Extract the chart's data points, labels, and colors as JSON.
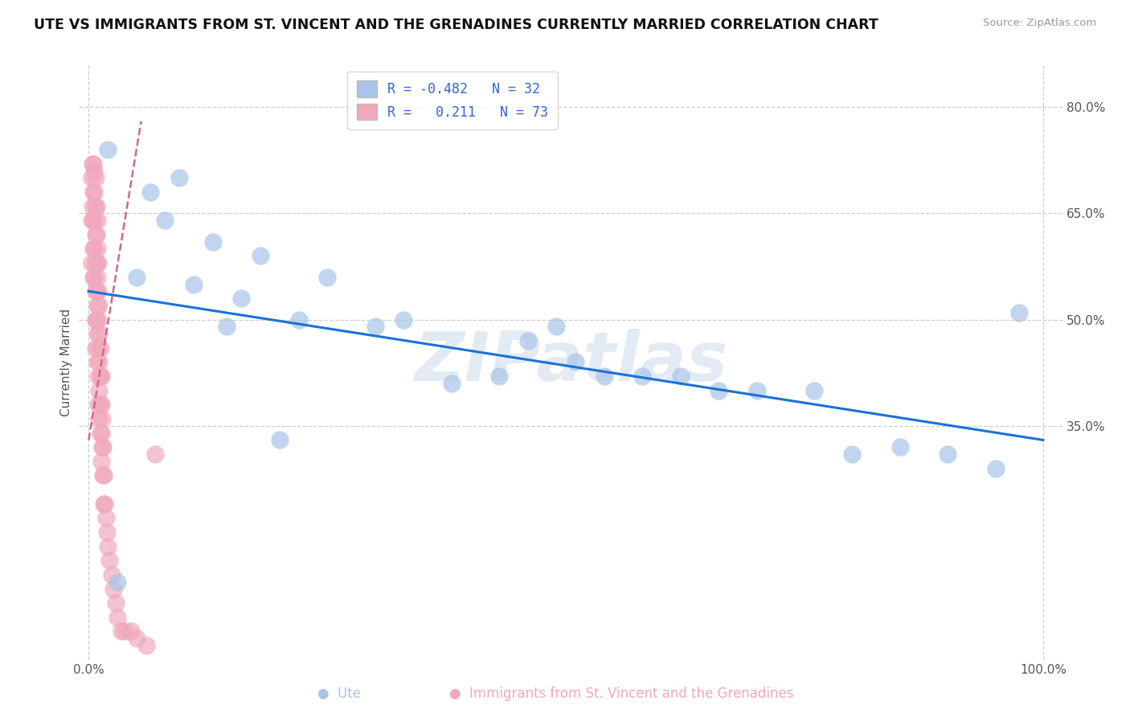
{
  "title": "UTE VS IMMIGRANTS FROM ST. VINCENT AND THE GRENADINES CURRENTLY MARRIED CORRELATION CHART",
  "source": "Source: ZipAtlas.com",
  "ylabel": "Currently Married",
  "xlim": [
    -0.01,
    1.02
  ],
  "ylim": [
    0.02,
    0.86
  ],
  "xtick_positions": [
    0.0,
    1.0
  ],
  "xtick_labels": [
    "0.0%",
    "100.0%"
  ],
  "ytick_values": [
    0.35,
    0.5,
    0.65,
    0.8
  ],
  "ytick_labels": [
    "35.0%",
    "50.0%",
    "65.0%",
    "80.0%"
  ],
  "background_color": "#ffffff",
  "grid_color": "#cccccc",
  "watermark": "ZIPatlas",
  "blue_fill": "#a8c4e8",
  "pink_fill": "#f0a8bc",
  "blue_line": "#1a72d4",
  "pink_line": "#d06888",
  "legend_text_color": "#3366cc",
  "ute_x": [
    0.02,
    0.03,
    0.05,
    0.065,
    0.08,
    0.095,
    0.11,
    0.13,
    0.145,
    0.16,
    0.18,
    0.2,
    0.22,
    0.25,
    0.3,
    0.33,
    0.38,
    0.43,
    0.46,
    0.49,
    0.51,
    0.54,
    0.58,
    0.62,
    0.66,
    0.7,
    0.76,
    0.8,
    0.85,
    0.9,
    0.95,
    0.975
  ],
  "ute_y": [
    0.74,
    0.13,
    0.56,
    0.68,
    0.64,
    0.7,
    0.55,
    0.61,
    0.49,
    0.53,
    0.59,
    0.33,
    0.5,
    0.56,
    0.49,
    0.5,
    0.41,
    0.42,
    0.47,
    0.49,
    0.44,
    0.42,
    0.42,
    0.42,
    0.4,
    0.4,
    0.4,
    0.31,
    0.32,
    0.31,
    0.29,
    0.51
  ],
  "svg_x": [
    0.003,
    0.003,
    0.003,
    0.004,
    0.004,
    0.005,
    0.005,
    0.005,
    0.005,
    0.005,
    0.006,
    0.006,
    0.006,
    0.006,
    0.006,
    0.007,
    0.007,
    0.007,
    0.007,
    0.007,
    0.007,
    0.007,
    0.008,
    0.008,
    0.008,
    0.008,
    0.008,
    0.009,
    0.009,
    0.009,
    0.009,
    0.009,
    0.009,
    0.01,
    0.01,
    0.01,
    0.01,
    0.01,
    0.01,
    0.011,
    0.011,
    0.011,
    0.011,
    0.011,
    0.012,
    0.012,
    0.012,
    0.012,
    0.013,
    0.013,
    0.013,
    0.013,
    0.014,
    0.014,
    0.015,
    0.015,
    0.016,
    0.016,
    0.017,
    0.018,
    0.019,
    0.02,
    0.022,
    0.024,
    0.026,
    0.028,
    0.03,
    0.034,
    0.038,
    0.044,
    0.05,
    0.06,
    0.07
  ],
  "svg_y": [
    0.7,
    0.64,
    0.58,
    0.72,
    0.66,
    0.72,
    0.68,
    0.64,
    0.6,
    0.56,
    0.71,
    0.68,
    0.64,
    0.6,
    0.56,
    0.7,
    0.66,
    0.62,
    0.58,
    0.54,
    0.5,
    0.46,
    0.66,
    0.62,
    0.58,
    0.54,
    0.5,
    0.64,
    0.6,
    0.56,
    0.52,
    0.48,
    0.44,
    0.58,
    0.54,
    0.5,
    0.46,
    0.42,
    0.38,
    0.52,
    0.48,
    0.44,
    0.4,
    0.36,
    0.46,
    0.42,
    0.38,
    0.34,
    0.42,
    0.38,
    0.34,
    0.3,
    0.36,
    0.32,
    0.32,
    0.28,
    0.28,
    0.24,
    0.24,
    0.22,
    0.2,
    0.18,
    0.16,
    0.14,
    0.12,
    0.1,
    0.08,
    0.06,
    0.06,
    0.06,
    0.05,
    0.04,
    0.31
  ],
  "blue_line_x": [
    0.0,
    1.0
  ],
  "blue_line_y": [
    0.54,
    0.33
  ],
  "pink_line_x": [
    0.0,
    0.055
  ],
  "pink_line_y": [
    0.33,
    0.78
  ]
}
